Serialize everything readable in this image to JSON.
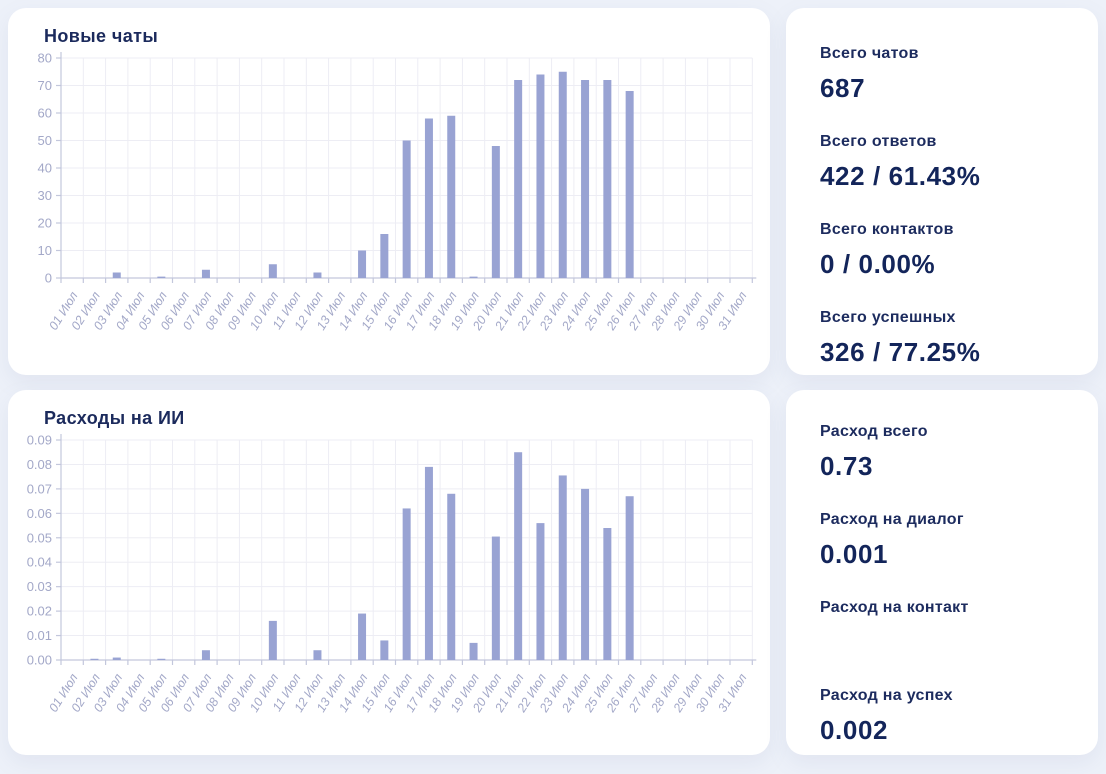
{
  "colors": {
    "background": "#edf1f9",
    "card": "#ffffff",
    "bar": "#99a3d3",
    "axis_line": "#c3c7dc",
    "grid_line": "#ededf4",
    "axis_label": "#a3a8c8",
    "title_text": "#1b2a5c",
    "value_text": "#13255a"
  },
  "chart_data": [
    {
      "type": "bar",
      "title": "Новые чаты",
      "xlabel": "",
      "ylabel": "",
      "grid": "on",
      "legend": "none",
      "ylim": [
        0,
        80
      ],
      "y_tick_labels": [
        "0",
        "10",
        "20",
        "30",
        "40",
        "50",
        "60",
        "70",
        "80"
      ],
      "categories": [
        "01 Июл",
        "02 Июл",
        "03 Июл",
        "04 Июл",
        "05 Июл",
        "06 Июл",
        "07 Июл",
        "08 Июл",
        "09 Июл",
        "10 Июл",
        "11 Июл",
        "12 Июл",
        "13 Июл",
        "14 Июл",
        "15 Июл",
        "16 Июл",
        "17 Июл",
        "18 Июл",
        "19 Июл",
        "20 Июл",
        "21 Июл",
        "22 Июл",
        "23 Июл",
        "24 Июл",
        "25 Июл",
        "26 Июл",
        "27 Июл",
        "28 Июл",
        "29 Июл",
        "30 Июл",
        "31 Июл"
      ],
      "values": [
        0,
        0,
        2,
        0,
        0.5,
        0,
        3,
        0,
        0,
        5,
        0,
        2,
        0,
        10,
        16,
        50,
        58,
        59,
        0.5,
        48,
        72,
        74,
        75,
        72,
        72,
        68,
        0,
        0,
        0,
        0,
        0
      ]
    },
    {
      "type": "bar",
      "title": "Расходы на ИИ",
      "xlabel": "",
      "ylabel": "",
      "grid": "on",
      "legend": "none",
      "ylim": [
        0,
        0.09
      ],
      "y_tick_labels": [
        "0.00",
        "0.01",
        "0.02",
        "0.03",
        "0.04",
        "0.05",
        "0.06",
        "0.07",
        "0.08",
        "0.09"
      ],
      "categories": [
        "01 Июл",
        "02 Июл",
        "03 Июл",
        "04 Июл",
        "05 Июл",
        "06 Июл",
        "07 Июл",
        "08 Июл",
        "09 Июл",
        "10 Июл",
        "11 Июл",
        "12 Июл",
        "13 Июл",
        "14 Июл",
        "15 Июл",
        "16 Июл",
        "17 Июл",
        "18 Июл",
        "19 Июл",
        "20 Июл",
        "21 Июл",
        "22 Июл",
        "23 Июл",
        "24 Июл",
        "25 Июл",
        "26 Июл",
        "27 Июл",
        "28 Июл",
        "29 Июл",
        "30 Июл",
        "31 Июл"
      ],
      "values": [
        0,
        0.0005,
        0.001,
        0,
        0.0005,
        0,
        0.004,
        0,
        0,
        0.016,
        0,
        0.004,
        0,
        0.019,
        0.008,
        0.062,
        0.079,
        0.068,
        0.007,
        0.0505,
        0.085,
        0.056,
        0.0755,
        0.07,
        0.054,
        0.067,
        0,
        0,
        0,
        0,
        0
      ]
    }
  ],
  "stats_panels": {
    "chats": [
      {
        "label": "Всего чатов",
        "value": "687"
      },
      {
        "label": "Всего ответов",
        "value": "422 / 61.43%"
      },
      {
        "label": "Всего контактов",
        "value": "0 / 0.00%"
      },
      {
        "label": "Всего успешных",
        "value": "326 / 77.25%"
      }
    ],
    "expenses": [
      {
        "label": "Расход всего",
        "value": "0.73"
      },
      {
        "label": "Расход на диалог",
        "value": "0.001"
      },
      {
        "label": "Расход на контакт",
        "value": ""
      },
      {
        "label": "Расход на успех",
        "value": "0.002"
      }
    ]
  }
}
